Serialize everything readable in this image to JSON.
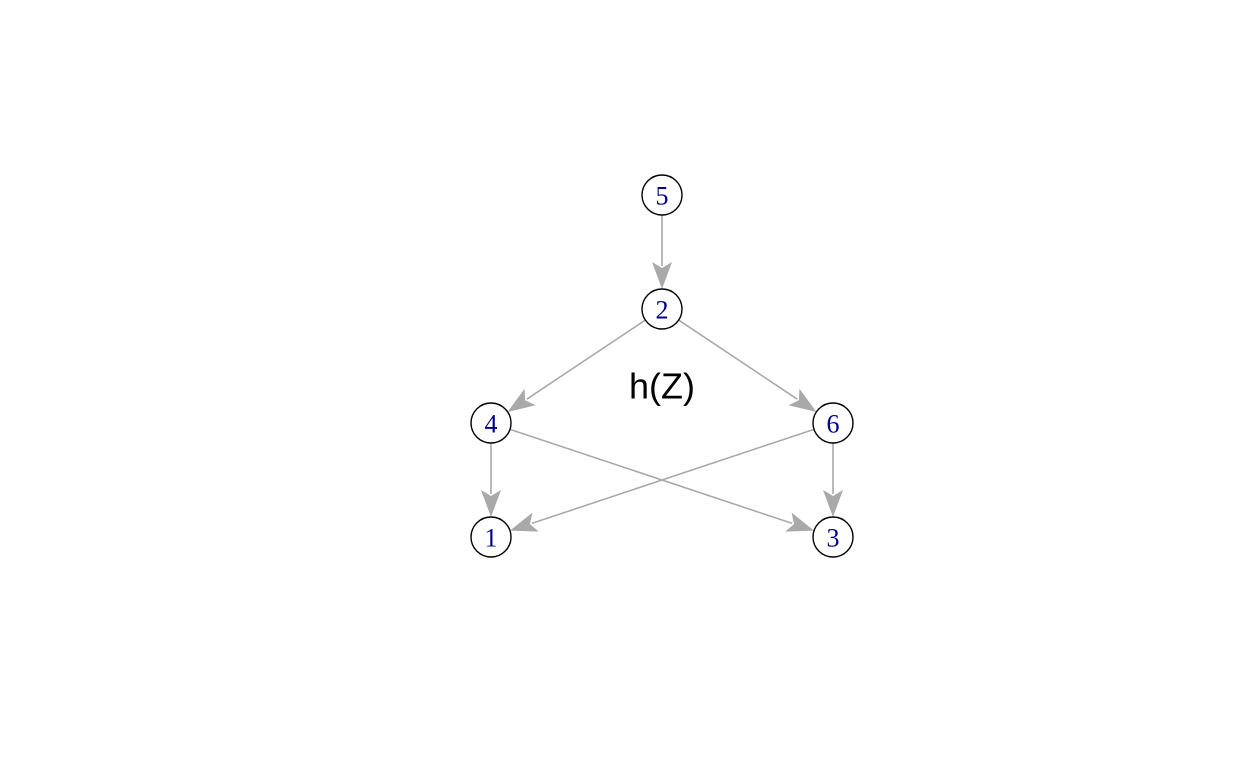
{
  "graph": {
    "title": "h(Z)",
    "colors": {
      "edge": "#a9a9a9",
      "node_border": "#000000",
      "node_fill": "#ffffff",
      "label": "#00008b"
    },
    "directed": true,
    "nodes": [
      {
        "id": "5",
        "label": "5"
      },
      {
        "id": "2",
        "label": "2"
      },
      {
        "id": "4",
        "label": "4"
      },
      {
        "id": "6",
        "label": "6"
      },
      {
        "id": "1",
        "label": "1"
      },
      {
        "id": "3",
        "label": "3"
      }
    ],
    "edges": [
      {
        "from": "5",
        "to": "2"
      },
      {
        "from": "2",
        "to": "4"
      },
      {
        "from": "2",
        "to": "6"
      },
      {
        "from": "4",
        "to": "1"
      },
      {
        "from": "4",
        "to": "3"
      },
      {
        "from": "6",
        "to": "1"
      },
      {
        "from": "6",
        "to": "3"
      }
    ]
  }
}
